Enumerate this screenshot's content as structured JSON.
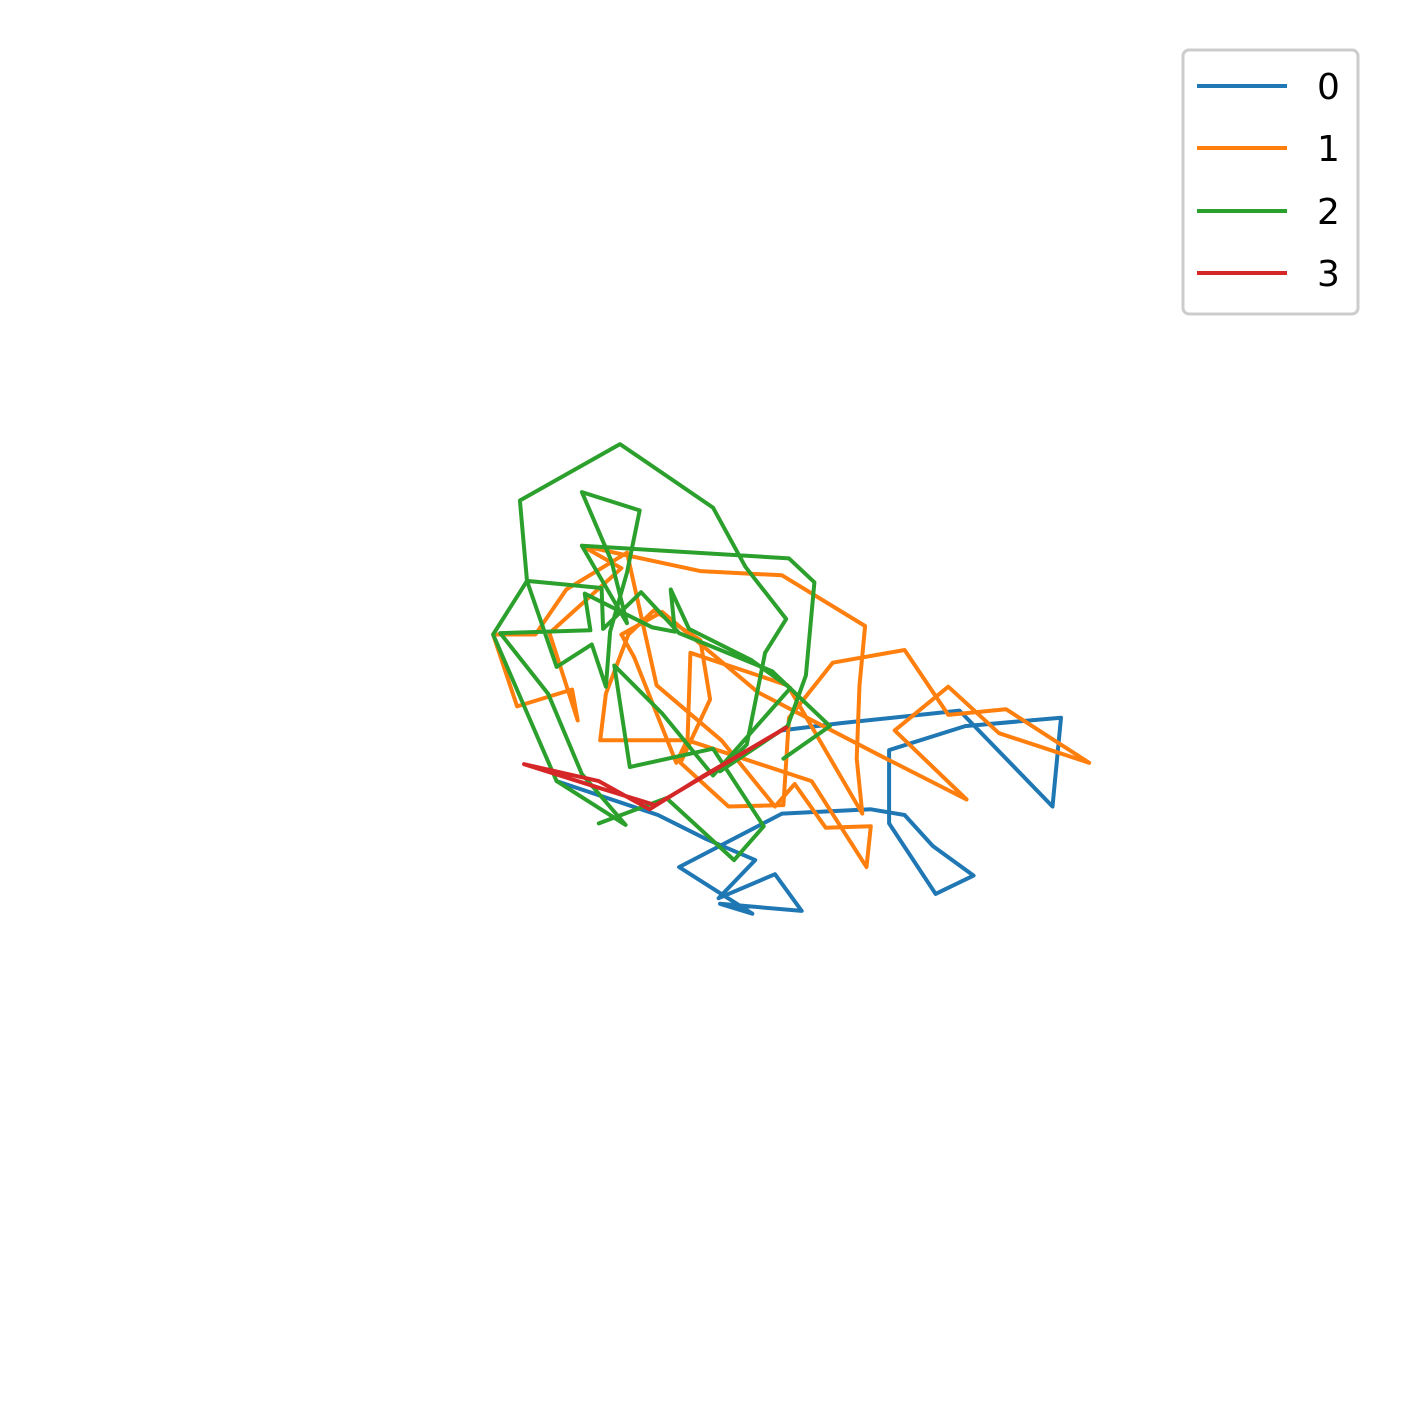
{
  "chart_data": {
    "type": "line",
    "title": "",
    "xlabel": "",
    "ylabel": "",
    "axes_visible": false,
    "grid": false,
    "legend_position": "top-right",
    "xlim": [
      0,
      100
    ],
    "ylim": [
      0,
      100
    ],
    "series": [
      {
        "name": "0",
        "color": "#1f77b4",
        "points": [
          [
            39.5,
            44.6
          ],
          [
            46.7,
            42.2
          ],
          [
            50.1,
            40.5
          ],
          [
            53.6,
            39.0
          ],
          [
            51.0,
            36.3
          ],
          [
            55.0,
            38.0
          ],
          [
            56.9,
            35.4
          ],
          [
            51.1,
            35.9
          ],
          [
            53.4,
            35.2
          ],
          [
            48.2,
            38.5
          ],
          [
            55.5,
            42.3
          ],
          [
            61.8,
            42.6
          ],
          [
            64.2,
            42.2
          ],
          [
            66.2,
            40.0
          ],
          [
            69.1,
            37.9
          ],
          [
            66.4,
            36.6
          ],
          [
            63.1,
            41.6
          ],
          [
            63.1,
            46.8
          ],
          [
            68.5,
            48.5
          ],
          [
            75.3,
            49.1
          ],
          [
            74.7,
            42.8
          ],
          [
            68.1,
            49.6
          ],
          [
            59.6,
            48.7
          ],
          [
            55.5,
            48.2
          ]
        ]
      },
      {
        "name": "1",
        "color": "#ff7f0e",
        "points": [
          [
            35.0,
            55.0
          ],
          [
            36.7,
            49.9
          ],
          [
            40.6,
            51.1
          ],
          [
            41.0,
            48.9
          ],
          [
            39.0,
            55.1
          ],
          [
            44.1,
            59.7
          ],
          [
            41.3,
            61.3
          ],
          [
            49.7,
            59.5
          ],
          [
            55.5,
            59.2
          ],
          [
            61.4,
            55.6
          ],
          [
            61.0,
            51.4
          ],
          [
            60.8,
            46.2
          ],
          [
            61.2,
            42.3
          ],
          [
            55.9,
            51.4
          ],
          [
            49.0,
            53.7
          ],
          [
            48.8,
            47.6
          ],
          [
            48.0,
            45.9
          ],
          [
            45.0,
            53.4
          ],
          [
            44.1,
            55.0
          ],
          [
            47.0,
            56.6
          ],
          [
            53.8,
            50.9
          ],
          [
            62.5,
            46.4
          ],
          [
            68.6,
            43.3
          ],
          [
            63.5,
            48.2
          ],
          [
            67.3,
            51.3
          ],
          [
            70.9,
            48.0
          ],
          [
            77.3,
            45.9
          ],
          [
            71.4,
            49.7
          ],
          [
            67.3,
            49.3
          ],
          [
            64.2,
            53.9
          ],
          [
            59.1,
            53.0
          ],
          [
            56.0,
            49.1
          ],
          [
            55.6,
            42.9
          ],
          [
            51.7,
            42.8
          ],
          [
            48.3,
            45.9
          ],
          [
            50.4,
            50.4
          ],
          [
            49.7,
            54.6
          ],
          [
            46.4,
            56.7
          ],
          [
            44.6,
            55.0
          ],
          [
            43.0,
            50.8
          ],
          [
            42.6,
            47.5
          ],
          [
            48.8,
            47.5
          ],
          [
            57.6,
            44.6
          ],
          [
            61.5,
            38.5
          ],
          [
            61.8,
            41.4
          ],
          [
            58.6,
            41.3
          ],
          [
            56.4,
            44.4
          ],
          [
            55.0,
            42.8
          ],
          [
            51.2,
            47.5
          ],
          [
            46.6,
            51.4
          ],
          [
            44.5,
            60.8
          ],
          [
            40.2,
            58.2
          ],
          [
            38.0,
            55.0
          ],
          [
            35.0,
            55.0
          ]
        ]
      },
      {
        "name": "2",
        "color": "#2ca02c",
        "points": [
          [
            42.5,
            41.6
          ],
          [
            47.3,
            43.4
          ],
          [
            52.1,
            39.0
          ],
          [
            54.2,
            41.4
          ],
          [
            50.6,
            46.9
          ],
          [
            44.7,
            45.6
          ],
          [
            43.6,
            52.8
          ],
          [
            47.0,
            49.4
          ],
          [
            50.6,
            45.0
          ],
          [
            54.5,
            49.4
          ],
          [
            56.1,
            51.2
          ],
          [
            53.3,
            53.2
          ],
          [
            48.9,
            55.4
          ],
          [
            47.6,
            58.2
          ],
          [
            47.9,
            55.2
          ],
          [
            46.3,
            55.5
          ],
          [
            41.5,
            57.9
          ],
          [
            41.9,
            55.3
          ],
          [
            35.5,
            55.1
          ],
          [
            38.9,
            50.8
          ],
          [
            41.3,
            45.1
          ],
          [
            44.4,
            41.5
          ],
          [
            39.5,
            44.6
          ],
          [
            35.0,
            55.0
          ],
          [
            37.4,
            58.8
          ],
          [
            36.9,
            64.5
          ],
          [
            44.0,
            68.5
          ],
          [
            50.6,
            64.0
          ],
          [
            52.9,
            59.8
          ],
          [
            55.8,
            56.1
          ],
          [
            54.3,
            53.7
          ],
          [
            53.0,
            47.2
          ],
          [
            51.1,
            45.3
          ],
          [
            55.9,
            48.5
          ],
          [
            57.2,
            52.1
          ],
          [
            57.8,
            58.7
          ],
          [
            56.0,
            60.4
          ],
          [
            41.3,
            61.3
          ],
          [
            44.5,
            55.8
          ],
          [
            43.4,
            60.2
          ],
          [
            41.3,
            65.1
          ],
          [
            45.4,
            63.8
          ],
          [
            44.5,
            59.4
          ],
          [
            43.3,
            55.2
          ],
          [
            43.0,
            51.3
          ],
          [
            42.0,
            54.3
          ],
          [
            39.5,
            52.7
          ],
          [
            37.4,
            58.8
          ],
          [
            42.7,
            58.3
          ],
          [
            42.8,
            55.4
          ],
          [
            45.5,
            58.0
          ],
          [
            48.2,
            55.1
          ],
          [
            54.8,
            52.4
          ],
          [
            58.9,
            48.5
          ],
          [
            55.6,
            46.2
          ]
        ]
      },
      {
        "name": "3",
        "color": "#d62728",
        "points": [
          [
            37.2,
            45.8
          ],
          [
            42.5,
            44.6
          ],
          [
            46.1,
            42.6
          ],
          [
            49.8,
            44.9
          ],
          [
            55.8,
            48.4
          ],
          [
            46.5,
            42.9
          ],
          [
            42.6,
            44.1
          ],
          [
            37.2,
            45.8
          ]
        ]
      }
    ]
  },
  "legend": {
    "items": [
      {
        "label": "0",
        "color": "#1f77b4"
      },
      {
        "label": "1",
        "color": "#ff7f0e"
      },
      {
        "label": "2",
        "color": "#2ca02c"
      },
      {
        "label": "3",
        "color": "#d62728"
      }
    ]
  }
}
